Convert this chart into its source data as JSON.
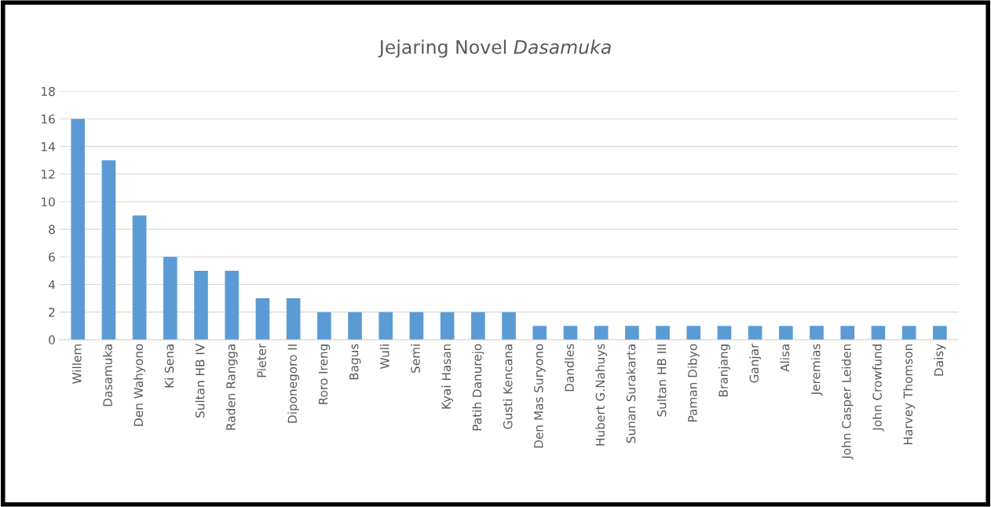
{
  "chart_data": {
    "type": "bar",
    "title": "Jejaring Novel Dasamuka",
    "categories": [
      "Willem",
      "Dasamuka",
      "Den Wahyono",
      "Ki Sena",
      "Sultan HB IV",
      "Raden Rangga",
      "Pieter",
      "Diponegoro II",
      "Roro Ireng",
      "Bagus",
      "Wuli",
      "Semi",
      "Kyai Hasan",
      "Patih Danurejo",
      "Gusti Kencana",
      "Den Mas Suryono",
      "Dandles",
      "Hubert G.Nahuys",
      "Sunan Surakarta",
      "Sultan HB III",
      "Paman Dibyo",
      "Branjang",
      "Ganjar",
      "Alisa",
      "Jeremias",
      "John Casper Leiden",
      "John Crowfund",
      "Harvey Thomson",
      "Daisy"
    ],
    "values": [
      16,
      13,
      9,
      6,
      5,
      5,
      3,
      3,
      2,
      2,
      2,
      2,
      2,
      2,
      2,
      1,
      1,
      1,
      1,
      1,
      1,
      1,
      1,
      1,
      1,
      1,
      1,
      1,
      1
    ],
    "color": "#5b9bd5",
    "ylim": [
      0,
      18
    ],
    "yticks": [
      0,
      2,
      4,
      6,
      8,
      10,
      12,
      14,
      16,
      18
    ],
    "grid": "y"
  }
}
